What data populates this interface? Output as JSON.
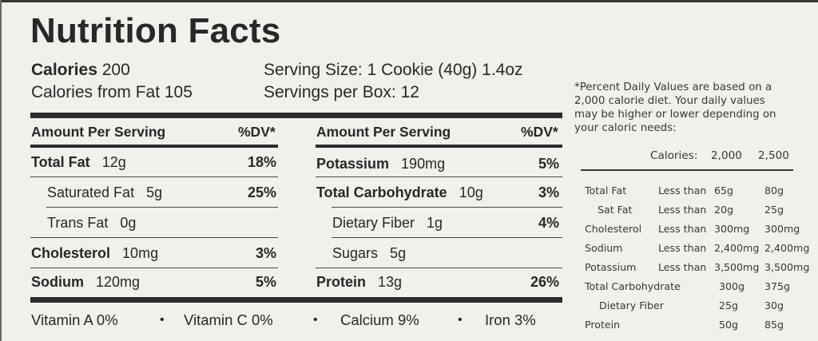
{
  "title": "Nutrition Facts",
  "summary": {
    "calories_label": "Calories",
    "calories_value": "200",
    "fat_calories": "Calories from Fat 105",
    "serving_size": "Serving Size: 1 Cookie (40g) 1.4oz",
    "servings": "Servings per Box: 12"
  },
  "left_table": {
    "header_label": "Amount Per Serving",
    "header_dv": "%DV*",
    "rows": [
      {
        "name": "Total Fat",
        "amount": "12g",
        "dv": "18%"
      },
      {
        "name": "Saturated Fat",
        "amount": "5g",
        "dv": "25%"
      },
      {
        "name": "Trans Fat",
        "amount": "0g",
        "dv": ""
      },
      {
        "name": "Cholesterol",
        "amount": "10mg",
        "dv": "3%"
      },
      {
        "name": "Sodium",
        "amount": "120mg",
        "dv": "5%"
      }
    ]
  },
  "right_table": {
    "header_label": "Amount Per Serving",
    "header_dv": "%DV*",
    "rows": [
      {
        "name": "Potassium",
        "amount": "190mg",
        "dv": "5%"
      },
      {
        "name": "Total Carbohydrate",
        "amount": "10g",
        "dv": "3%"
      },
      {
        "name": "Dietary Fiber",
        "amount": "1g",
        "dv": "4%"
      },
      {
        "name": "Sugars",
        "amount": "5g",
        "dv": ""
      },
      {
        "name": "Protein",
        "amount": "13g",
        "dv": "26%"
      }
    ]
  },
  "vitamins": [
    {
      "label": "Vitamin A 0%"
    },
    {
      "label": "Vitamin C 0%"
    },
    {
      "label": "Calcium 9%"
    },
    {
      "label": "Iron 3%"
    }
  ],
  "separator_dot": "•",
  "footnote": [
    "*Percent Daily Values are based on a",
    "2,000 calorie diet.  Your daily values",
    "may be higher or lower depending on",
    "your caloric needs:"
  ],
  "reference": {
    "header": {
      "label": "Calories:",
      "col1": "2,000",
      "col2": "2,500"
    },
    "rows": [
      {
        "nutrient": "Total Fat",
        "qualifier": "Less than",
        "v2000": "65g",
        "v2500": "80g"
      },
      {
        "nutrient": "Sat Fat",
        "qualifier": "Less than",
        "v2000": "20g",
        "v2500": "25g"
      },
      {
        "nutrient": "Cholesterol",
        "qualifier": "Less than",
        "v2000": "300mg",
        "v2500": "300mg"
      },
      {
        "nutrient": "Sodium",
        "qualifier": "Less than",
        "v2000": "2,400mg",
        "v2500": "2,400mg"
      },
      {
        "nutrient": "Potassium",
        "qualifier": "Less than",
        "v2000": "3,500mg",
        "v2500": "3,500mg"
      },
      {
        "nutrient": "Total Carbohydrate",
        "qualifier": "",
        "v2000": "300g",
        "v2500": "375g"
      },
      {
        "nutrient": "Dietary Fiber",
        "qualifier": "",
        "v2000": "25g",
        "v2500": "30g"
      },
      {
        "nutrient": "Protein",
        "qualifier": "",
        "v2000": "50g",
        "v2500": "85g"
      }
    ]
  }
}
